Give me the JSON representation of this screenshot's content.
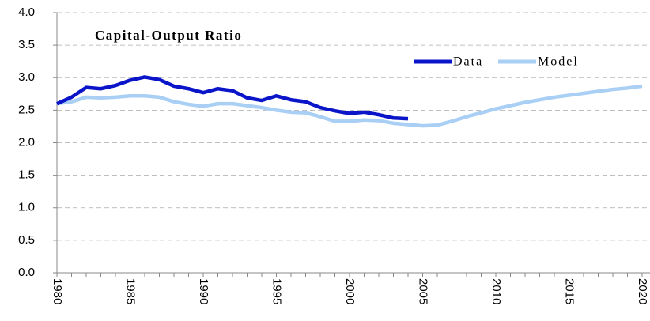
{
  "chart_data": {
    "type": "line",
    "title": "Capital-Output Ratio",
    "x": [
      1980,
      1981,
      1982,
      1983,
      1984,
      1985,
      1986,
      1987,
      1988,
      1989,
      1990,
      1991,
      1992,
      1993,
      1994,
      1995,
      1996,
      1997,
      1998,
      1999,
      2000,
      2001,
      2002,
      2003,
      2004,
      2005,
      2006,
      2007,
      2008,
      2009,
      2010,
      2011,
      2012,
      2013,
      2014,
      2015,
      2016,
      2017,
      2018,
      2019,
      2020
    ],
    "series": [
      {
        "name": "Data",
        "color": "#0a14c8",
        "values": [
          2.6,
          2.7,
          2.85,
          2.83,
          2.88,
          2.96,
          3.01,
          2.97,
          2.87,
          2.83,
          2.77,
          2.83,
          2.8,
          2.69,
          2.65,
          2.72,
          2.66,
          2.63,
          2.54,
          2.49,
          2.45,
          2.47,
          2.43,
          2.38,
          2.37,
          null,
          null,
          null,
          null,
          null,
          null,
          null,
          null,
          null,
          null,
          null,
          null,
          null,
          null,
          null,
          null
        ]
      },
      {
        "name": "Model",
        "color": "#a9cff5",
        "values": [
          2.6,
          2.63,
          2.7,
          2.69,
          2.7,
          2.72,
          2.72,
          2.7,
          2.63,
          2.59,
          2.56,
          2.6,
          2.6,
          2.57,
          2.54,
          2.5,
          2.47,
          2.46,
          2.4,
          2.33,
          2.33,
          2.35,
          2.34,
          2.3,
          2.28,
          2.26,
          2.27,
          2.33,
          2.4,
          2.46,
          2.52,
          2.57,
          2.62,
          2.66,
          2.7,
          2.73,
          2.76,
          2.79,
          2.82,
          2.84,
          2.87
        ]
      }
    ],
    "xlim": [
      1980,
      2020
    ],
    "xticks": [
      1980,
      1985,
      1990,
      1995,
      2000,
      2005,
      2010,
      2015,
      2020
    ],
    "ylim": [
      0,
      4
    ],
    "yticks": [
      {
        "value": 0,
        "label": "0.0"
      },
      0.5,
      {
        "value": 1,
        "label": "1.0"
      },
      1.5,
      {
        "value": 2,
        "label": "2.0"
      },
      2.5,
      {
        "value": 3,
        "label": "3.0"
      },
      3.5,
      {
        "value": 4,
        "label": "4.0"
      }
    ],
    "grid": true,
    "legend": "top-right"
  }
}
